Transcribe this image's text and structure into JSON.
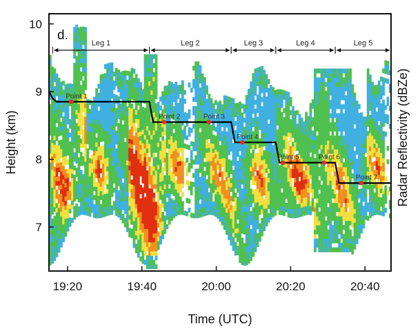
{
  "chart_data": {
    "type": "heatmap",
    "panel_label": "d.",
    "xlabel": "Time (UTC)",
    "ylabel": "Height (km)",
    "y2label": "Radar Reflectivity (dBZe)",
    "xlim": [
      "19:15",
      "20:47"
    ],
    "ylim": [
      6.35,
      10.15
    ],
    "x_ticks": [
      "19:20",
      "19:40",
      "20:00",
      "20:20",
      "20:40"
    ],
    "y_ticks": [
      7,
      8,
      9,
      10
    ],
    "legs": [
      {
        "label": "Leg 1",
        "start": "19:16",
        "end": "19:42"
      },
      {
        "label": "Leg 2",
        "start": "19:42",
        "end": "20:04"
      },
      {
        "label": "Leg 3",
        "start": "20:04",
        "end": "20:16"
      },
      {
        "label": "Leg 4",
        "start": "20:16",
        "end": "20:32"
      },
      {
        "label": "Leg 5",
        "start": "20:32",
        "end": "20:47"
      }
    ],
    "flight_track": {
      "x": [
        "19:15",
        "19:16",
        "19:17",
        "19:42",
        "19:43",
        "20:04",
        "20:05",
        "20:16",
        "20:17",
        "20:32",
        "20:33",
        "20:47"
      ],
      "y": [
        9.0,
        8.9,
        8.85,
        8.85,
        8.55,
        8.55,
        8.25,
        8.25,
        7.95,
        7.95,
        7.65,
        7.65
      ]
    },
    "points": [
      {
        "label": "Point 1",
        "x": "19:21",
        "y": 8.85
      },
      {
        "label": "Point 2",
        "x": "19:46",
        "y": 8.55
      },
      {
        "label": "Point 3",
        "x": "19:58",
        "y": 8.55
      },
      {
        "label": "Point 4",
        "x": "20:07",
        "y": 8.25
      },
      {
        "label": "Point 5",
        "x": "20:18",
        "y": 7.95
      },
      {
        "label": "Point 6",
        "x": "20:29",
        "y": 7.95
      },
      {
        "label": "Point 7",
        "x": "20:39",
        "y": 7.65
      }
    ],
    "colors": {
      "low": "#40b0e0",
      "mid": "#50c050",
      "high": "#f0e040",
      "higher": "#f09020",
      "max": "#e03010",
      "track": "#000000",
      "point": "#e03020"
    }
  }
}
